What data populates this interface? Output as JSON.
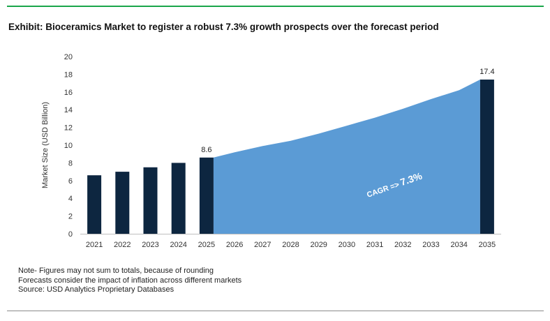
{
  "exhibit_title": "Exhibit: Bioceramics Market to register a robust 7.3% growth prospects over the forecast period",
  "notes": [
    "Note- Figures may not sum to totals, because of rounding",
    "Forecasts consider the impact of inflation across different markets",
    "Source: USD Analytics Proprietary Databases"
  ],
  "colors": {
    "bar": "#0d2640",
    "area": "#5b9bd5",
    "rule_top": "#1aa64a"
  },
  "chart_data": {
    "type": "bar",
    "title": "",
    "xlabel": "",
    "ylabel": "Market Size (USD Billion)",
    "ylim": [
      0,
      20
    ],
    "yticks": [
      0,
      2,
      4,
      6,
      8,
      10,
      12,
      14,
      16,
      18,
      20
    ],
    "grid": false,
    "categories": [
      "2021",
      "2022",
      "2023",
      "2024",
      "2025",
      "2026",
      "2027",
      "2028",
      "2029",
      "2030",
      "2031",
      "2032",
      "2033",
      "2034",
      "2035"
    ],
    "bars": [
      {
        "x": "2021",
        "value": 6.6,
        "label": ""
      },
      {
        "x": "2022",
        "value": 7.0,
        "label": ""
      },
      {
        "x": "2023",
        "value": 7.5,
        "label": ""
      },
      {
        "x": "2024",
        "value": 8.0,
        "label": ""
      },
      {
        "x": "2025",
        "value": 8.6,
        "label": "8.6"
      },
      {
        "x": "2035",
        "value": 17.4,
        "label": "17.4"
      }
    ],
    "area_series": {
      "x": [
        "2025",
        "2026",
        "2027",
        "2028",
        "2029",
        "2030",
        "2031",
        "2032",
        "2033",
        "2034",
        "2035"
      ],
      "values": [
        8.6,
        9.2,
        9.9,
        10.5,
        11.3,
        12.2,
        13.1,
        14.1,
        15.2,
        16.2,
        17.4
      ]
    },
    "annotation": {
      "prefix": "CAGR =>",
      "value": "7.3%"
    }
  }
}
